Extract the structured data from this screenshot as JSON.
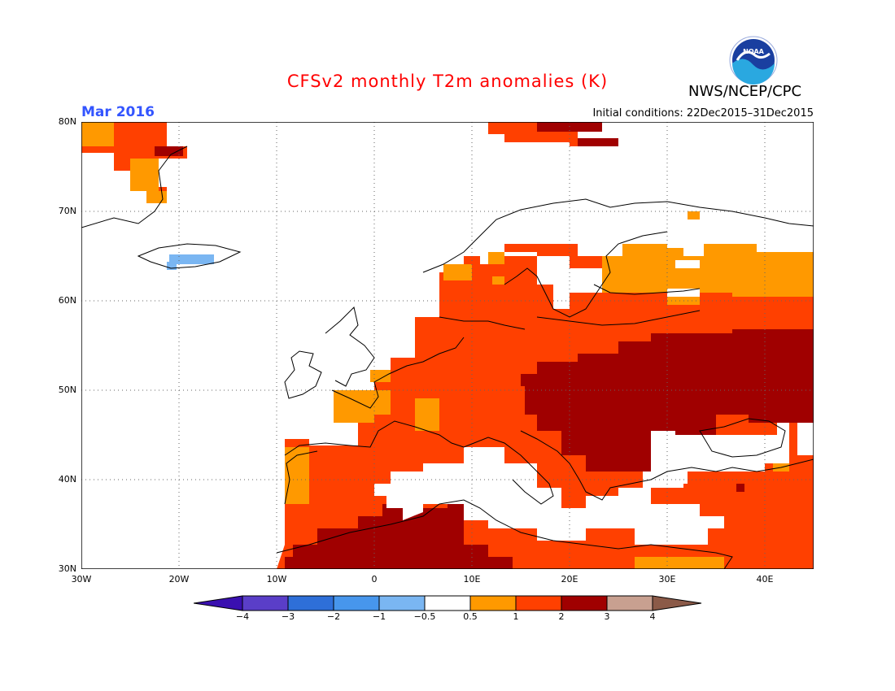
{
  "header": {
    "title": "CFSv2 monthly T2m anomalies (K)",
    "month": "Mar 2016",
    "initial_conditions": "Initial conditions: 22Dec2015–31Dec2015",
    "agency": "NWS/NCEP/CPC",
    "logo_text": "NOAA"
  },
  "map": {
    "lat_labels": [
      "80N",
      "70N",
      "60N",
      "50N",
      "40N",
      "30N"
    ],
    "lon_labels": [
      "30W",
      "20W",
      "10W",
      "0",
      "10E",
      "20E",
      "30E",
      "40E"
    ],
    "lon_range": [
      -30,
      45
    ],
    "lat_range": [
      30,
      80
    ]
  },
  "colorbar": {
    "labels": [
      "−4",
      "−3",
      "−2",
      "−1",
      "−0.5",
      "0.5",
      "1",
      "2",
      "3",
      "4"
    ],
    "colors": [
      "#3a10b0",
      "#5a3ec8",
      "#2e6fd8",
      "#4796ec",
      "#7ab6f2",
      "#ffffff",
      "#ff9900",
      "#ff4000",
      "#a00000",
      "#c8a090",
      "#8b5a48"
    ]
  }
}
